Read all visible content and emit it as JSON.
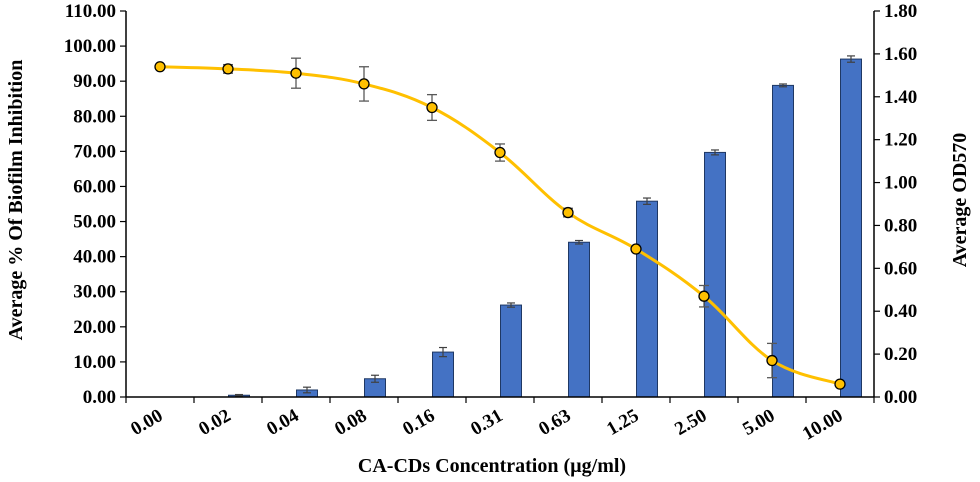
{
  "chart_data": {
    "type": "bar+line",
    "xlabel": "CA-CDs Concentration (µg/ml)",
    "ylabel_left": "Average % Of Biofilm Inhibition",
    "ylabel_right": "Average OD570",
    "categories": [
      "0.00",
      "0.02",
      "0.04",
      "0.08",
      "0.16",
      "0.31",
      "0.63",
      "1.25",
      "2.50",
      "5.00",
      "10.00"
    ],
    "left_axis": {
      "ylim": [
        0,
        110
      ],
      "ticks": [
        "0.00",
        "10.00",
        "20.00",
        "30.00",
        "40.00",
        "50.00",
        "60.00",
        "70.00",
        "80.00",
        "90.00",
        "100.00",
        "110.00"
      ]
    },
    "right_axis": {
      "ylim": [
        0,
        1.8
      ],
      "ticks": [
        "0.00",
        "0.20",
        "0.40",
        "0.60",
        "0.80",
        "1.00",
        "1.20",
        "1.40",
        "1.60",
        "1.80"
      ]
    },
    "bar_series": {
      "axis": "left",
      "color": "#4472C4",
      "values": [
        0,
        0.5,
        2.0,
        5.2,
        12.8,
        26.2,
        44.1,
        55.8,
        69.7,
        88.8,
        96.3
      ],
      "errors": [
        0,
        0.2,
        0.8,
        1.0,
        1.3,
        0.6,
        0.5,
        0.9,
        0.7,
        0.4,
        0.9
      ]
    },
    "line_series": {
      "axis": "right",
      "color": "#FFC000",
      "values": [
        1.54,
        1.53,
        1.51,
        1.46,
        1.35,
        1.14,
        0.86,
        0.69,
        0.47,
        0.17,
        0.06
      ],
      "errors": [
        0,
        0.02,
        0.07,
        0.08,
        0.06,
        0.04,
        0.02,
        0,
        0.05,
        0.08,
        0
      ]
    },
    "grid": false
  }
}
